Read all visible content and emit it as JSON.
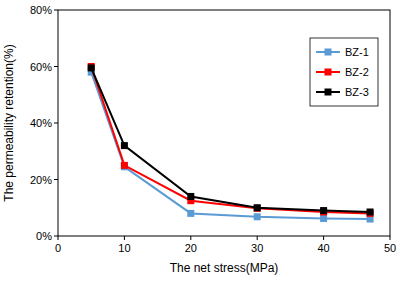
{
  "chart_data": {
    "type": "line",
    "x_label": "The net stress(MPa)",
    "y_label": "The permeability retention(%)",
    "x": [
      5,
      10,
      20,
      30,
      40,
      47
    ],
    "series": [
      {
        "name": "BZ-1",
        "color": "#5b9bd5",
        "marker": "square",
        "values": [
          58,
          24.5,
          8,
          6.8,
          6.2,
          6
        ]
      },
      {
        "name": "BZ-2",
        "color": "#ff0000",
        "marker": "square",
        "values": [
          60,
          25,
          12.5,
          9.8,
          8.5,
          8
        ]
      },
      {
        "name": "BZ-3",
        "color": "#000000",
        "marker": "square",
        "values": [
          59.5,
          32,
          14,
          10,
          9,
          8.5
        ]
      }
    ],
    "xlim": [
      0,
      50
    ],
    "xticks": [
      0,
      10,
      20,
      30,
      40,
      50
    ],
    "ylim": [
      0,
      80
    ],
    "yticks": [
      {
        "value": 0,
        "label": "0%"
      },
      {
        "value": 20,
        "label": "20%"
      },
      {
        "value": 40,
        "label": "40%"
      },
      {
        "value": 60,
        "label": "60%"
      },
      {
        "value": 80,
        "label": "80%"
      }
    ],
    "grid": false,
    "legend": "upper right"
  }
}
